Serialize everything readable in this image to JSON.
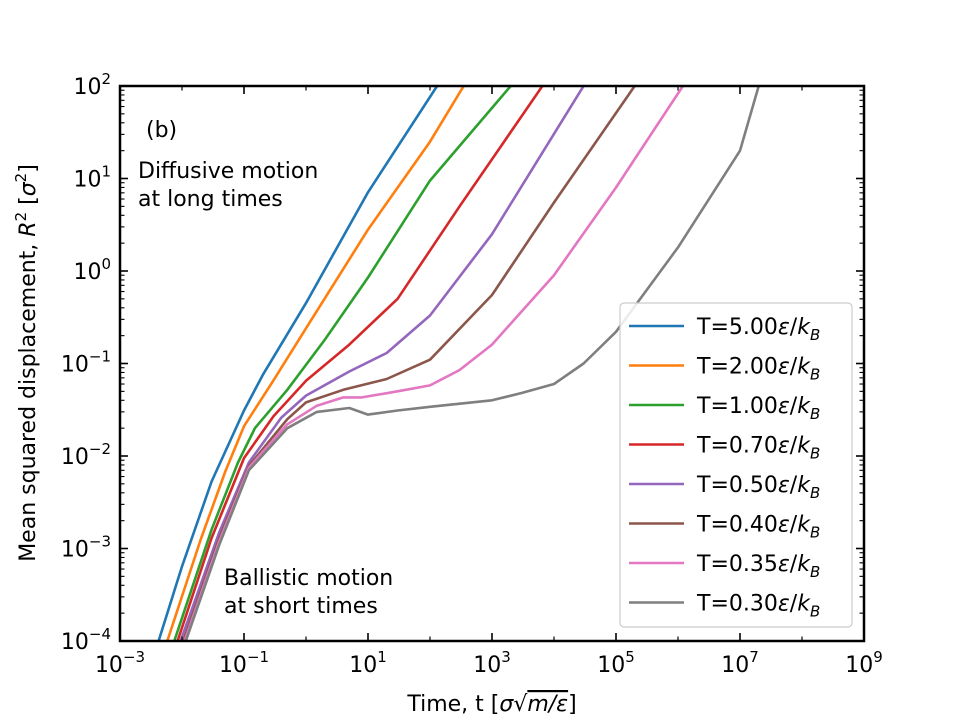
{
  "chart_data": {
    "type": "line",
    "xscale": "log",
    "yscale": "log",
    "xlim": [
      0.001,
      1000000000
    ],
    "ylim": [
      0.0001,
      100
    ],
    "xlabel": "Time, t [σ√(m/ε)]",
    "ylabel": "Mean squared displacement, R² [σ²]",
    "panel_label": "(b)",
    "annotations": [
      {
        "id": "diffusive",
        "lines": [
          "Diffusive motion",
          "at long times"
        ],
        "x": 0.06,
        "y": 10
      },
      {
        "id": "ballistic",
        "lines": [
          "Ballistic motion",
          "at short times"
        ],
        "x": 0.05,
        "y": 0.00012
      }
    ],
    "x_ticks": [
      {
        "value": 0.001,
        "base": "10",
        "exp": "−3"
      },
      {
        "value": 0.1,
        "base": "10",
        "exp": "−1"
      },
      {
        "value": 10,
        "base": "10",
        "exp": "1"
      },
      {
        "value": 1000,
        "base": "10",
        "exp": "3"
      },
      {
        "value": 100000,
        "base": "10",
        "exp": "5"
      },
      {
        "value": 10000000,
        "base": "10",
        "exp": "7"
      },
      {
        "value": 1000000000,
        "base": "10",
        "exp": "9"
      }
    ],
    "y_ticks": [
      {
        "value": 0.0001,
        "base": "10",
        "exp": "−4"
      },
      {
        "value": 0.001,
        "base": "10",
        "exp": "−3"
      },
      {
        "value": 0.01,
        "base": "10",
        "exp": "−2"
      },
      {
        "value": 0.1,
        "base": "10",
        "exp": "−1"
      },
      {
        "value": 1,
        "base": "10",
        "exp": "0"
      },
      {
        "value": 10,
        "base": "10",
        "exp": "1"
      },
      {
        "value": 100,
        "base": "10",
        "exp": "2"
      }
    ],
    "legend": {
      "location": "lower right"
    },
    "series": [
      {
        "name": "T=5.00ε/k_B",
        "legend_prefix": "T=5.00",
        "color": "#1f77b4",
        "points": [
          [
            0.0042,
            0.0001
          ],
          [
            0.01,
            0.00064
          ],
          [
            0.03,
            0.0053
          ],
          [
            0.1,
            0.031
          ],
          [
            0.2,
            0.075
          ],
          [
            1,
            0.45
          ],
          [
            10,
            7.1
          ],
          [
            130,
            100
          ]
        ]
      },
      {
        "name": "T=2.00ε/k_B",
        "legend_prefix": "T=2.00",
        "color": "#ff7f0e",
        "points": [
          [
            0.0058,
            0.0001
          ],
          [
            0.02,
            0.00125
          ],
          [
            0.05,
            0.0068
          ],
          [
            0.1,
            0.021
          ],
          [
            0.3,
            0.066
          ],
          [
            1,
            0.24
          ],
          [
            10,
            2.8
          ],
          [
            100,
            25
          ],
          [
            350,
            100
          ]
        ]
      },
      {
        "name": "T=1.00ε/k_B",
        "legend_prefix": "T=1.00",
        "color": "#2ca02c",
        "points": [
          [
            0.0075,
            0.0001
          ],
          [
            0.03,
            0.0016
          ],
          [
            0.08,
            0.0085
          ],
          [
            0.15,
            0.02
          ],
          [
            0.5,
            0.052
          ],
          [
            2,
            0.18
          ],
          [
            10,
            0.85
          ],
          [
            100,
            9.5
          ],
          [
            2000,
            100
          ]
        ]
      },
      {
        "name": "T=0.70ε/k_B",
        "legend_prefix": "T=0.70",
        "color": "#d62728",
        "points": [
          [
            0.0085,
            0.0001
          ],
          [
            0.03,
            0.0013
          ],
          [
            0.1,
            0.0095
          ],
          [
            0.3,
            0.027
          ],
          [
            1,
            0.065
          ],
          [
            5,
            0.16
          ],
          [
            30,
            0.5
          ],
          [
            300,
            5
          ],
          [
            6500,
            100
          ]
        ]
      },
      {
        "name": "T=0.50ε/k_B",
        "legend_prefix": "T=0.50",
        "color": "#9467bd",
        "points": [
          [
            0.0095,
            0.0001
          ],
          [
            0.04,
            0.0015
          ],
          [
            0.12,
            0.0085
          ],
          [
            0.4,
            0.026
          ],
          [
            1,
            0.045
          ],
          [
            5,
            0.082
          ],
          [
            20,
            0.13
          ],
          [
            100,
            0.33
          ],
          [
            1000,
            2.5
          ],
          [
            30000,
            100
          ]
        ]
      },
      {
        "name": "T=0.40ε/k_B",
        "legend_prefix": "T=0.40",
        "color": "#8c564b",
        "points": [
          [
            0.0105,
            0.0001
          ],
          [
            0.04,
            0.0013
          ],
          [
            0.12,
            0.0078
          ],
          [
            0.5,
            0.025
          ],
          [
            1,
            0.038
          ],
          [
            4,
            0.052
          ],
          [
            20,
            0.068
          ],
          [
            100,
            0.11
          ],
          [
            1000,
            0.55
          ],
          [
            10000,
            5.5
          ],
          [
            200000,
            100
          ]
        ]
      },
      {
        "name": "T=0.35ε/k_B",
        "legend_prefix": "T=0.35",
        "color": "#e377c2",
        "points": [
          [
            0.011,
            0.0001
          ],
          [
            0.04,
            0.0012
          ],
          [
            0.12,
            0.0075
          ],
          [
            0.5,
            0.022
          ],
          [
            1.5,
            0.035
          ],
          [
            4,
            0.043
          ],
          [
            8,
            0.043
          ],
          [
            30,
            0.05
          ],
          [
            100,
            0.058
          ],
          [
            300,
            0.085
          ],
          [
            1000,
            0.16
          ],
          [
            10000,
            0.9
          ],
          [
            100000,
            8
          ],
          [
            1200000,
            100
          ]
        ]
      },
      {
        "name": "T=0.30ε/k_B",
        "legend_prefix": "T=0.30",
        "color": "#7f7f7f",
        "points": [
          [
            0.0115,
            0.0001
          ],
          [
            0.04,
            0.0011
          ],
          [
            0.12,
            0.007
          ],
          [
            0.5,
            0.02
          ],
          [
            1.5,
            0.03
          ],
          [
            5,
            0.033
          ],
          [
            10,
            0.028
          ],
          [
            30,
            0.031
          ],
          [
            100,
            0.034
          ],
          [
            1000,
            0.04
          ],
          [
            3000,
            0.048
          ],
          [
            10000,
            0.06
          ],
          [
            30000,
            0.1
          ],
          [
            100000,
            0.22
          ],
          [
            1000000,
            1.8
          ],
          [
            10000000,
            20
          ],
          [
            20000000,
            100
          ]
        ]
      }
    ]
  }
}
